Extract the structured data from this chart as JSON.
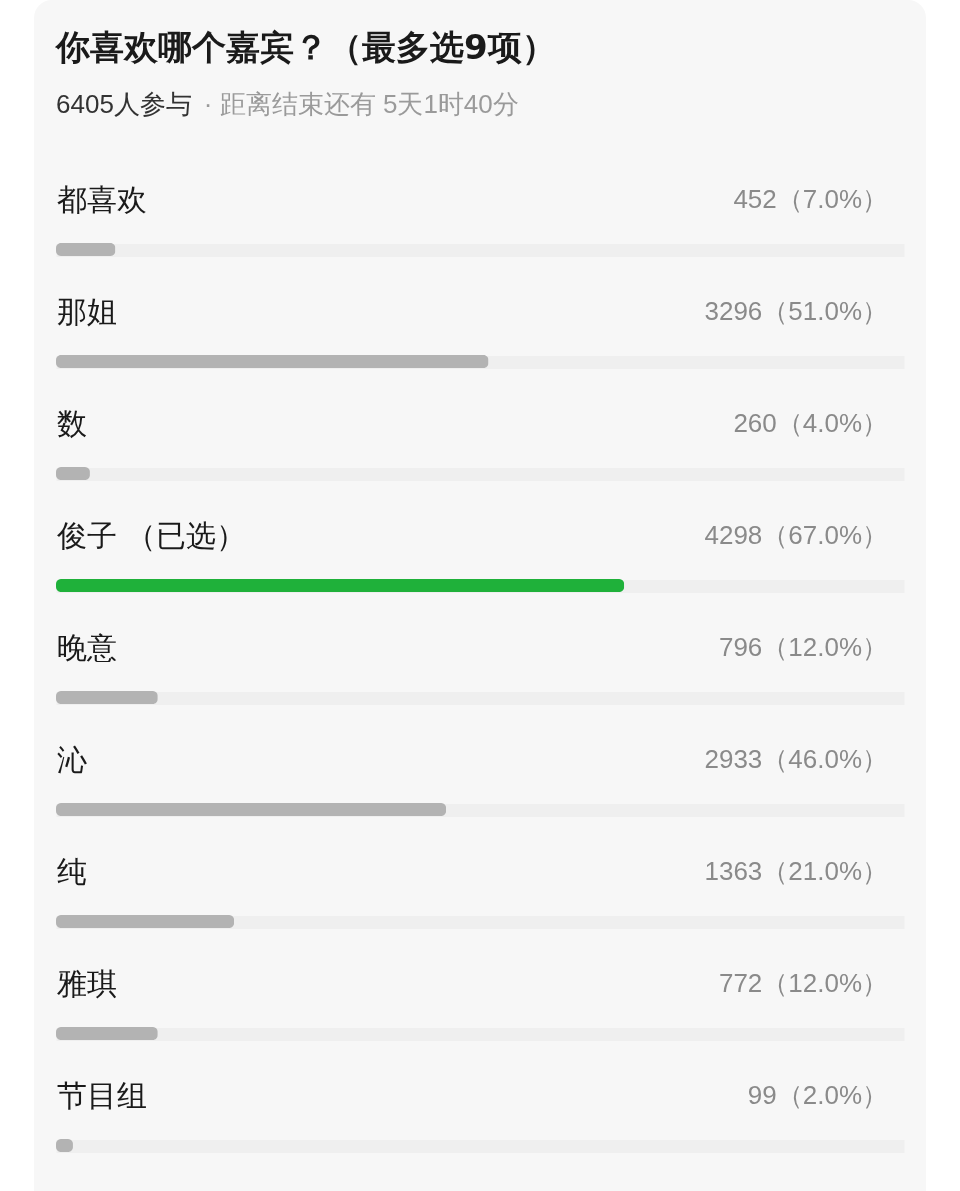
{
  "chart_data": {
    "type": "bar",
    "orientation": "horizontal",
    "title": "你喜欢哪个嘉宾？（最多选9项）",
    "subtitle": "6405人参与",
    "annotations": [
      "· 距离结束还有 5天1时40分"
    ],
    "categories": [
      "都喜欢",
      "那姐",
      "数",
      "俊子 （已选）",
      "晚意",
      "沁",
      "纯",
      "雅琪",
      "节目组"
    ],
    "values": [
      7.0,
      51.0,
      4.0,
      67.0,
      12.0,
      46.0,
      21.0,
      12.0,
      2.0
    ],
    "value_labels": [
      "452（7.0%）",
      "3296（51.0%）",
      "260（4.0%）",
      "4298（67.0%）",
      "796（12.0%）",
      "2933（46.0%）",
      "1363（21.0%）",
      "772（12.0%）",
      "99（2.0%）"
    ],
    "colors": [
      "#b3b3b3",
      "#b3b3b3",
      "#b3b3b3",
      "#1fb13a",
      "#b3b3b3",
      "#b3b3b3",
      "#b3b3b3",
      "#b3b3b3",
      "#b3b3b3"
    ],
    "xlim": [
      0,
      100
    ],
    "grid": "y",
    "tick_labels": "y"
  }
}
